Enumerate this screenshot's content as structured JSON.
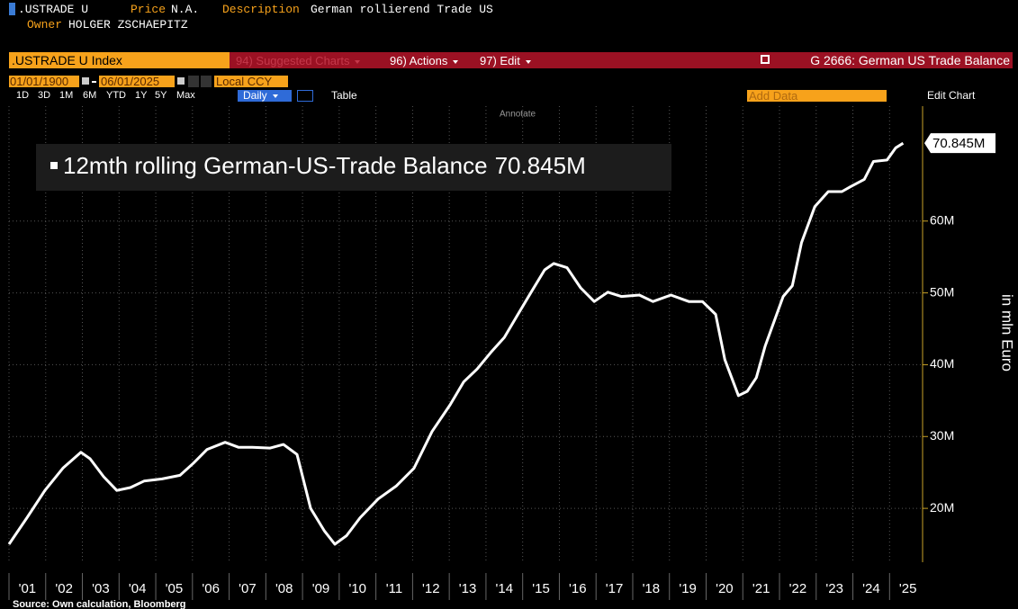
{
  "ui": {
    "ticker": ".USTRADE U",
    "price_label": "Price",
    "price": "N.A.",
    "description_label": "Description",
    "description": "German rollierend Trade US",
    "owner_label": "Owner",
    "owner": "HOLGER ZSCHAEPITZ",
    "security": ".USTRADE U Index",
    "menu": [
      "94) Suggested Charts",
      "96) Actions",
      "97) Edit"
    ],
    "chart_name": "G 2666: German US Trade Balance",
    "start_date": "01/01/1900",
    "end_date": "06/01/2025",
    "currency": "Local CCY",
    "add_data": "Add Data",
    "edit_chart": "Edit Chart",
    "periods": [
      "1D",
      "3D",
      "1M",
      "6M",
      "YTD",
      "1Y",
      "5Y",
      "Max"
    ],
    "frequency": "Daily",
    "table": "Table",
    "annotate": "Annotate",
    "source": "Source: Own calculation, Bloomberg"
  },
  "chart_data": {
    "type": "line",
    "ylabel": "in mln Euro",
    "x": [
      2001.0,
      2001.49,
      2001.98,
      2002.47,
      2002.96,
      2003.21,
      2003.58,
      2003.94,
      2004.31,
      2004.68,
      2005.17,
      2005.66,
      2006.03,
      2006.4,
      2006.89,
      2007.26,
      2007.63,
      2008.12,
      2008.48,
      2008.85,
      2009.22,
      2009.59,
      2009.88,
      2010.2,
      2010.57,
      2011.06,
      2011.55,
      2012.04,
      2012.53,
      2013.02,
      2013.39,
      2013.76,
      2014.13,
      2014.5,
      2014.87,
      2015.23,
      2015.6,
      2015.85,
      2016.21,
      2016.58,
      2016.95,
      2017.32,
      2017.69,
      2018.18,
      2018.55,
      2019.04,
      2019.53,
      2019.9,
      2020.26,
      2020.51,
      2020.88,
      2021.12,
      2021.37,
      2021.61,
      2022.1,
      2022.35,
      2022.6,
      2022.96,
      2023.33,
      2023.7,
      2023.94,
      2024.31,
      2024.56,
      2024.93,
      2025.17,
      2025.37
    ],
    "series": [
      {
        "name": "12mth rolling German-US-Trade Balance",
        "color": "#ffffff",
        "values": [
          15.0,
          18.7,
          22.5,
          25.6,
          27.8,
          26.9,
          24.4,
          22.5,
          22.9,
          23.8,
          24.1,
          24.6,
          26.3,
          28.2,
          29.2,
          28.5,
          28.5,
          28.4,
          28.9,
          27.5,
          20.0,
          16.9,
          15.0,
          16.2,
          18.7,
          21.3,
          23.1,
          25.6,
          30.7,
          34.4,
          37.6,
          39.4,
          41.7,
          43.8,
          47.0,
          50.1,
          53.2,
          54.1,
          53.5,
          50.7,
          48.8,
          50.1,
          49.5,
          49.7,
          48.8,
          49.7,
          48.8,
          48.8,
          47.0,
          40.7,
          35.7,
          36.3,
          38.2,
          42.6,
          49.5,
          51.0,
          57.0,
          62.0,
          64.1,
          64.1,
          64.8,
          65.8,
          68.3,
          68.5,
          70.2,
          70.845
        ],
        "value_labels": [
          null,
          null,
          null,
          null,
          null,
          null,
          null,
          null,
          null,
          null,
          null,
          null,
          null,
          null,
          null,
          null,
          null,
          null,
          null,
          null,
          null,
          null,
          null,
          null,
          null,
          null,
          null,
          null,
          null,
          null,
          null,
          null,
          null,
          null,
          null,
          null,
          null,
          null,
          null,
          null,
          null,
          null,
          null,
          null,
          null,
          null,
          null,
          null,
          null,
          null,
          null,
          null,
          null,
          null,
          null,
          null,
          null,
          null,
          null,
          null,
          null,
          null,
          null,
          null,
          null,
          "70.845M"
        ]
      }
    ],
    "xlim": [
      2001,
      2025.9
    ],
    "xticks": [
      {
        "value": 2001,
        "label": "'01"
      },
      {
        "value": 2002,
        "label": "'02"
      },
      {
        "value": 2003,
        "label": "'03"
      },
      {
        "value": 2004,
        "label": "'04"
      },
      {
        "value": 2005,
        "label": "'05"
      },
      {
        "value": 2006,
        "label": "'06"
      },
      {
        "value": 2007,
        "label": "'07"
      },
      {
        "value": 2008,
        "label": "'08"
      },
      {
        "value": 2009,
        "label": "'09"
      },
      {
        "value": 2010,
        "label": "'10"
      },
      {
        "value": 2011,
        "label": "'11"
      },
      {
        "value": 2012,
        "label": "'12"
      },
      {
        "value": 2013,
        "label": "'13"
      },
      {
        "value": 2014,
        "label": "'14"
      },
      {
        "value": 2015,
        "label": "'15"
      },
      {
        "value": 2016,
        "label": "'16"
      },
      {
        "value": 2017,
        "label": "'17"
      },
      {
        "value": 2018,
        "label": "'18"
      },
      {
        "value": 2019,
        "label": "'19"
      },
      {
        "value": 2020,
        "label": "'20"
      },
      {
        "value": 2021,
        "label": "'21"
      },
      {
        "value": 2022,
        "label": "'22"
      },
      {
        "value": 2023,
        "label": "'23"
      },
      {
        "value": 2024,
        "label": "'24"
      },
      {
        "value": 2025,
        "label": "'25"
      }
    ],
    "ylim": [
      12.5,
      76
    ],
    "yticks": [
      {
        "value": 20,
        "label": "20M"
      },
      {
        "value": 30,
        "label": "30M"
      },
      {
        "value": 40,
        "label": "40M"
      },
      {
        "value": 50,
        "label": "50M"
      },
      {
        "value": 60,
        "label": "60M"
      }
    ],
    "grid": true
  }
}
